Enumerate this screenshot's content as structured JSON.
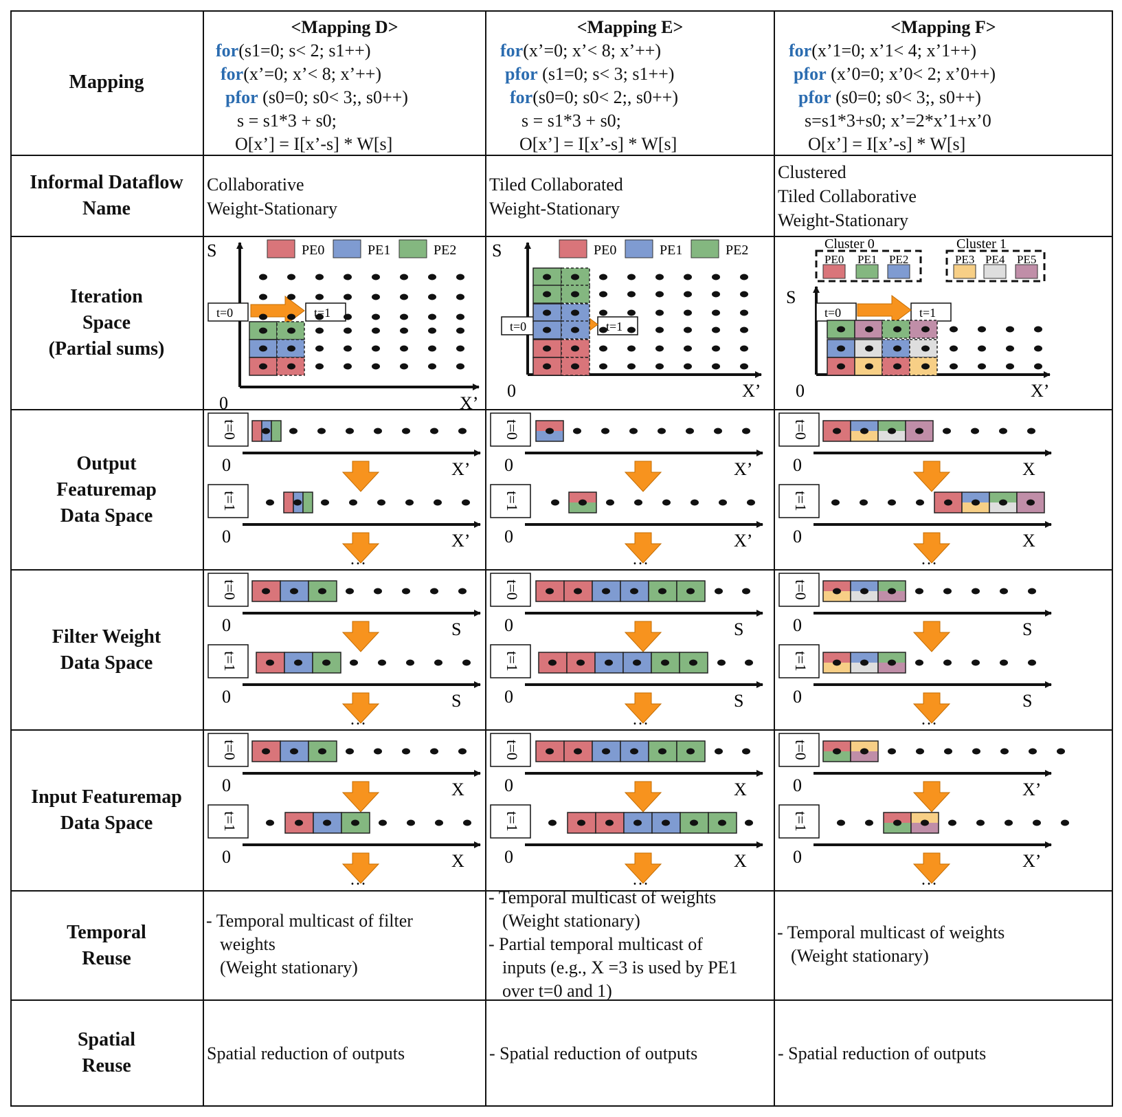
{
  "columns": [
    {
      "title": "<Mapping D>",
      "code": [
        [
          {
            "kw": "for"
          },
          {
            "t": "(s1=0; s< 2; s1++)"
          }
        ],
        [
          {
            "kw": "for"
          },
          {
            "t": "(x’=0; x’< 8; x’++)"
          }
        ],
        [
          {
            "kw": "pfor"
          },
          {
            "t": " (s0=0; s0< 3;, s0++)"
          }
        ],
        [
          {
            "t": "s = s1*3 + s0;"
          }
        ],
        [
          {
            "t": "O[x’] = I[x’-s] * W[s]"
          }
        ]
      ],
      "dataflow_name": [
        "Collaborative",
        "Weight-Stationary"
      ],
      "temporal_reuse": [
        "- Temporal multicast of filter",
        "weights",
        "(Weight stationary)"
      ],
      "spatial_reuse": "Spatial reduction of outputs"
    },
    {
      "title": "<Mapping E>",
      "code": [
        [
          {
            "kw": "for"
          },
          {
            "t": "(x’=0; x’< 8; x’++)"
          }
        ],
        [
          {
            "kw": "pfor"
          },
          {
            "t": " (s1=0; s< 3; s1++)"
          }
        ],
        [
          {
            "kw": "for"
          },
          {
            "t": "(s0=0; s0< 2;, s0++)"
          }
        ],
        [
          {
            "t": "s = s1*3 + s0;"
          }
        ],
        [
          {
            "t": "O[x’] = I[x’-s] * W[s]"
          }
        ]
      ],
      "dataflow_name": [
        "Tiled Collaborated",
        "Weight-Stationary"
      ],
      "temporal_reuse": [
        "- Temporal multicast of weights",
        "(Weight stationary)",
        "- Partial temporal multicast of",
        "inputs (e.g., X =3 is used by PE1",
        "over t=0 and 1)"
      ],
      "spatial_reuse": "- Spatial reduction of outputs"
    },
    {
      "title": "<Mapping F>",
      "code": [
        [
          {
            "kw": "for"
          },
          {
            "t": "(x’1=0; x’1< 4; x’1++)"
          }
        ],
        [
          {
            "kw": "pfor"
          },
          {
            "t": " (x’0=0; x’0< 2; x’0++)"
          }
        ],
        [
          {
            "kw": "pfor"
          },
          {
            "t": " (s0=0; s0< 3;, s0++)"
          }
        ],
        [
          {
            "t": "s=s1*3+s0; x’=2*x’1+x’0"
          }
        ],
        [
          {
            "t": "O[x’] = I[x’-s] * W[s]"
          }
        ]
      ],
      "dataflow_name": [
        "Clustered",
        "Tiled Collaborative",
        "Weight-Stationary"
      ],
      "temporal_reuse": [
        "- Temporal multicast of weights",
        "(Weight stationary)"
      ],
      "spatial_reuse": "- Spatial reduction of outputs"
    }
  ],
  "rows": {
    "mapping": [
      "Mapping"
    ],
    "dataflow": [
      "Informal Dataflow",
      "Name"
    ],
    "iteration": [
      "Iteration",
      "Space",
      "(Partial sums)"
    ],
    "output": [
      "Output",
      "Featuremap",
      "Data Space"
    ],
    "filter": [
      "Filter Weight",
      "Data Space"
    ],
    "input": [
      "Input Featuremap",
      "Data Space"
    ],
    "temporal": [
      "Temporal",
      "Reuse"
    ],
    "spatial": [
      "Spatial",
      "Reuse"
    ]
  },
  "legend": {
    "pe0": "PE0",
    "pe1": "PE1",
    "pe2": "PE2",
    "pe3": "PE3",
    "pe4": "PE4",
    "pe5": "PE5",
    "cluster0": "Cluster 0",
    "cluster1": "Cluster 1"
  },
  "labels": {
    "t0": "t=0",
    "t1": "t=1",
    "s_axis": "S",
    "origin": "0",
    "xprime": "X’",
    "x": "X",
    "ellipsis": "…"
  },
  "colors": {
    "pe0": "#d9757a",
    "pe1": "#7f9bd1",
    "pe2": "#84b780",
    "pe3": "#f7cf86",
    "pe4": "#dedede",
    "pe5": "#c08ea8",
    "arrow": "#f7931e",
    "kw": "#2b6cb0"
  },
  "icons": [
    "orange-down-arrow-icon",
    "orange-right-arrow-icon",
    "axis-arrow-icon"
  ]
}
